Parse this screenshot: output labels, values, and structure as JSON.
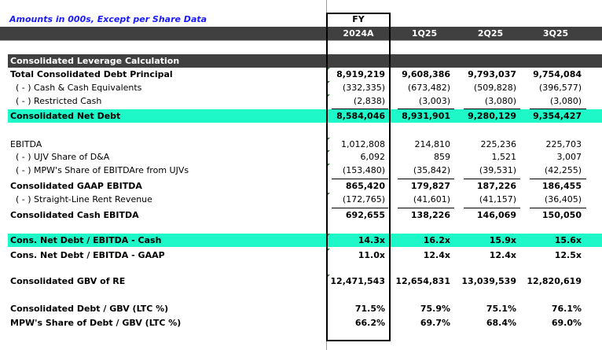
{
  "title": "Amounts in 000s, Except per Share Data",
  "header": {
    "fy": "FY",
    "columns": [
      "2024A",
      "1Q25",
      "2Q25",
      "3Q25"
    ]
  },
  "section": "Consolidated Leverage Calculation",
  "rows": [
    {
      "label": "Total Consolidated Debt Principal",
      "values": [
        "8,919,219",
        "9,608,386",
        "9,793,037",
        "9,754,084"
      ]
    },
    {
      "label": "( - ) Cash & Cash Equivalents",
      "values": [
        "(332,335)",
        "(673,482)",
        "(509,828)",
        "(396,577)"
      ]
    },
    {
      "label": "( - ) Restricted Cash",
      "values": [
        "(2,838)",
        "(3,003)",
        "(3,080)",
        "(3,080)"
      ]
    },
    {
      "label": "Consolidated Net Debt",
      "values": [
        "8,584,046",
        "8,931,901",
        "9,280,129",
        "9,354,427"
      ]
    },
    {
      "label": "EBITDA",
      "values": [
        "1,012,808",
        "214,810",
        "225,236",
        "225,703"
      ]
    },
    {
      "label": "( - ) UJV Share of D&A",
      "values": [
        "6,092",
        "859",
        "1,521",
        "3,007"
      ]
    },
    {
      "label": "( - ) MPW's Share of EBITDAre from UJVs",
      "values": [
        "(153,480)",
        "(35,842)",
        "(39,531)",
        "(42,255)"
      ]
    },
    {
      "label": "Consolidated GAAP EBITDA",
      "values": [
        "865,420",
        "179,827",
        "187,226",
        "186,455"
      ]
    },
    {
      "label": "( - ) Straight-Line Rent Revenue",
      "values": [
        "(172,765)",
        "(41,601)",
        "(41,157)",
        "(36,405)"
      ]
    },
    {
      "label": "Consolidated Cash EBITDA",
      "values": [
        "692,655",
        "138,226",
        "146,069",
        "150,050"
      ]
    },
    {
      "label": "Cons. Net Debt / EBITDA - Cash",
      "values": [
        "14.3x",
        "16.2x",
        "15.9x",
        "15.6x"
      ]
    },
    {
      "label": "Cons. Net Debt / EBITDA - GAAP",
      "values": [
        "11.0x",
        "12.4x",
        "12.4x",
        "12.5x"
      ]
    },
    {
      "label": "Consolidated GBV of RE",
      "values": [
        "12,471,543",
        "12,654,831",
        "13,039,539",
        "12,820,619"
      ]
    },
    {
      "label": "Consolidated Debt / GBV (LTC %)",
      "values": [
        "71.5%",
        "75.9%",
        "75.1%",
        "76.1%"
      ]
    },
    {
      "label": "MPW's Share of Debt / GBV (LTC %)",
      "values": [
        "66.2%",
        "69.7%",
        "68.4%",
        "69.0%"
      ]
    }
  ],
  "colors": {
    "highlight": "#1ef7c7",
    "band": "#404040",
    "title": "#1a1aff"
  }
}
